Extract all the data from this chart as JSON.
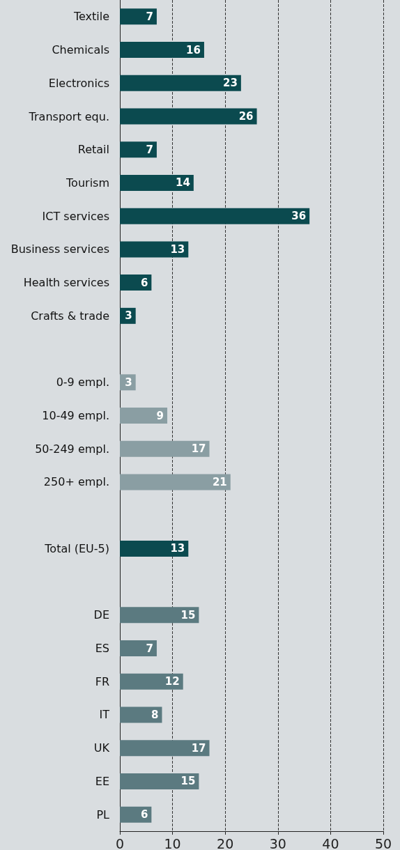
{
  "chart_data": {
    "type": "bar",
    "orientation": "horizontal",
    "categories": [
      "Textile",
      "Chemicals",
      "Electronics",
      "Transport equ.",
      "Retail",
      "Tourism",
      "ICT services",
      "Business services",
      "Health services",
      "Crafts & trade",
      null,
      "0-9 empl.",
      "10-49 empl.",
      "50-249 empl.",
      "250+ empl.",
      null,
      "Total (EU-5)",
      null,
      "DE",
      "ES",
      "FR",
      "IT",
      "UK",
      "EE",
      "PL"
    ],
    "values": [
      7,
      16,
      23,
      26,
      7,
      14,
      36,
      13,
      6,
      3,
      null,
      3,
      9,
      17,
      21,
      null,
      13,
      null,
      15,
      7,
      12,
      8,
      17,
      15,
      6
    ],
    "colors": [
      "#0b4a4f",
      "#0b4a4f",
      "#0b4a4f",
      "#0b4a4f",
      "#0b4a4f",
      "#0b4a4f",
      "#0b4a4f",
      "#0b4a4f",
      "#0b4a4f",
      "#0b4a4f",
      null,
      "#8a9ea3",
      "#8a9ea3",
      "#8a9ea3",
      "#8a9ea3",
      null,
      "#0b4a4f",
      null,
      "#5b7a80",
      "#5b7a80",
      "#5b7a80",
      "#5b7a80",
      "#5b7a80",
      "#5b7a80",
      "#5b7a80"
    ],
    "xlim": [
      0,
      50
    ],
    "xticks": [
      0,
      10,
      20,
      30,
      40,
      50
    ],
    "grid": "x",
    "data_labels": true
  }
}
